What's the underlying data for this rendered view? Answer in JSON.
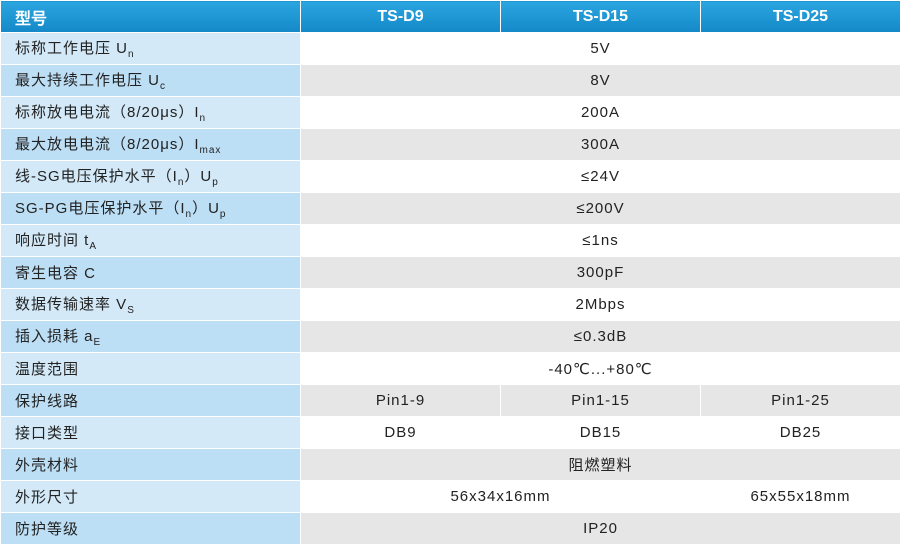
{
  "table": {
    "header": [
      "型号",
      "TS-D9",
      "TS-D15",
      "TS-D25"
    ],
    "rows": [
      {
        "label": [
          "标称工作电压 U",
          "n"
        ],
        "values": [
          "5V"
        ]
      },
      {
        "label": [
          "最大持续工作电压 U",
          "c"
        ],
        "values": [
          "8V"
        ]
      },
      {
        "label": [
          "标称放电电流（8/20μs）I",
          "n"
        ],
        "values": [
          "200A"
        ]
      },
      {
        "label": [
          "最大放电电流（8/20μs）I",
          "max"
        ],
        "values": [
          "300A"
        ]
      },
      {
        "label": [
          "线-SG电压保护水平（I",
          "n",
          "）U",
          "p"
        ],
        "values": [
          "≤24V"
        ]
      },
      {
        "label": [
          "SG-PG电压保护水平（I",
          "n",
          "）U",
          "p"
        ],
        "values": [
          "≤200V"
        ]
      },
      {
        "label": [
          "响应时间 t",
          "A"
        ],
        "values": [
          "≤1ns"
        ]
      },
      {
        "label": [
          "寄生电容 C"
        ],
        "values": [
          "300pF"
        ]
      },
      {
        "label": [
          "数据传输速率 V",
          "S"
        ],
        "values": [
          "2Mbps"
        ]
      },
      {
        "label": [
          "插入损耗 a",
          "E"
        ],
        "values": [
          "≤0.3dB"
        ]
      },
      {
        "label": [
          "温度范围"
        ],
        "values": [
          "-40℃...+80℃"
        ]
      },
      {
        "label": [
          "保护线路"
        ],
        "values": [
          "Pin1-9",
          "Pin1-15",
          "Pin1-25"
        ]
      },
      {
        "label": [
          "接口类型"
        ],
        "values": [
          "DB9",
          "DB15",
          "DB25"
        ]
      },
      {
        "label": [
          "外壳材料"
        ],
        "values": [
          "阻燃塑料"
        ]
      },
      {
        "label": [
          "外形尺寸"
        ],
        "values": [
          "56x34x16mm",
          "65x55x18mm"
        ]
      },
      {
        "label": [
          "防护等级"
        ],
        "values": [
          "IP20"
        ]
      }
    ]
  }
}
